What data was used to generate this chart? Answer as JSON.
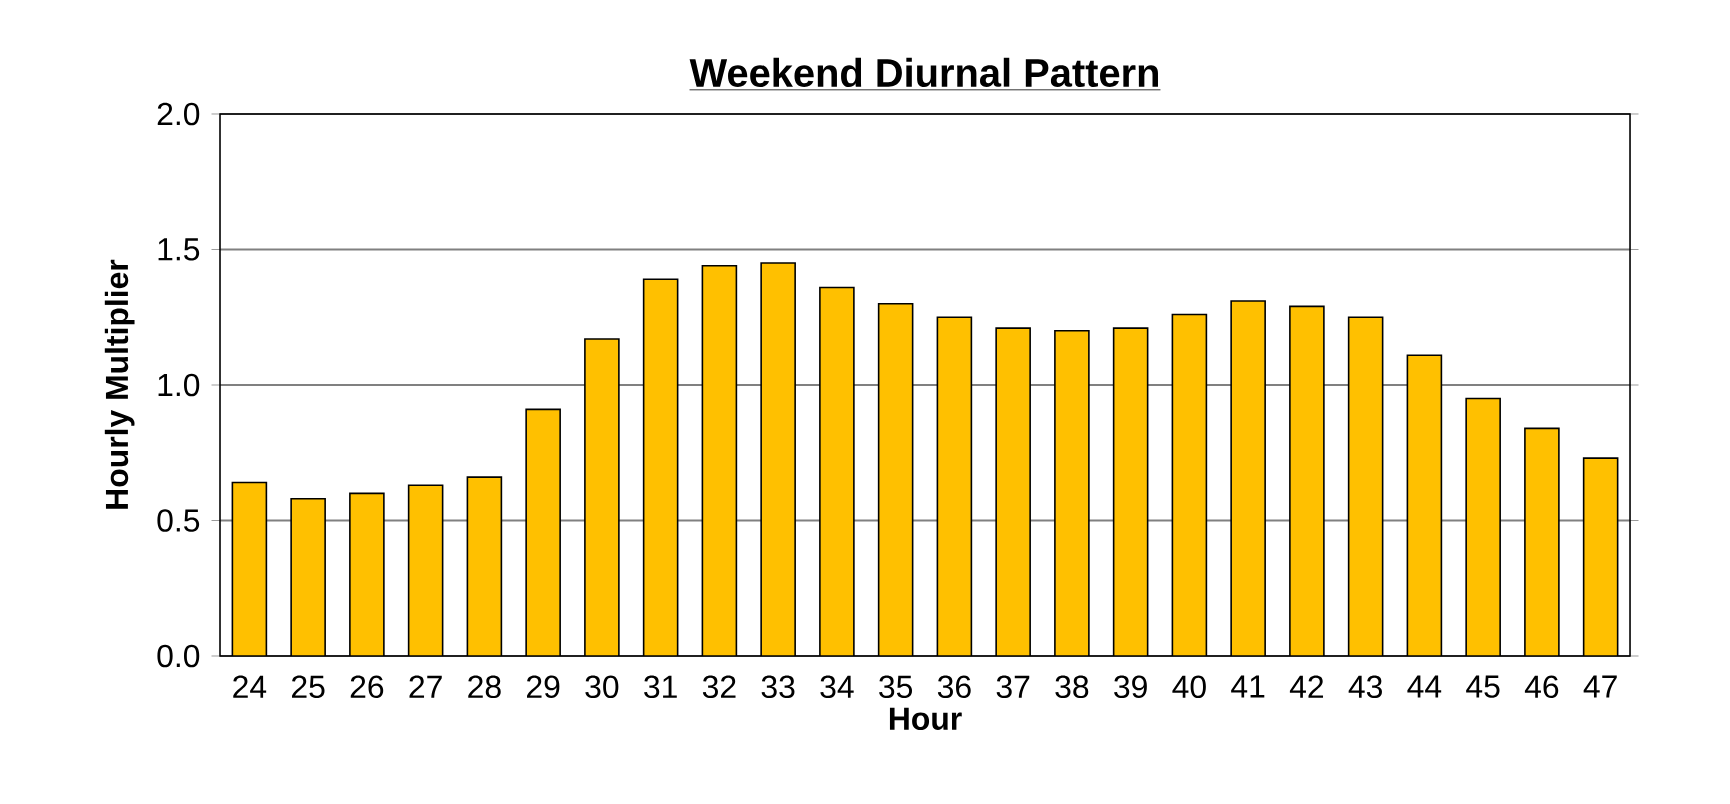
{
  "chart_data": {
    "type": "bar",
    "title": "Weekend Diurnal Pattern",
    "xlabel": "Hour",
    "ylabel": "Hourly Multiplier",
    "categories": [
      "24",
      "25",
      "26",
      "27",
      "28",
      "29",
      "30",
      "31",
      "32",
      "33",
      "34",
      "35",
      "36",
      "37",
      "38",
      "39",
      "40",
      "41",
      "42",
      "43",
      "44",
      "45",
      "46",
      "47"
    ],
    "values": [
      0.64,
      0.58,
      0.6,
      0.63,
      0.66,
      0.91,
      1.17,
      1.39,
      1.44,
      1.45,
      1.36,
      1.3,
      1.25,
      1.21,
      1.2,
      1.21,
      1.26,
      1.31,
      1.29,
      1.25,
      1.11,
      0.95,
      0.84,
      0.73
    ],
    "color": "#ffc000",
    "ylim": [
      0,
      2
    ],
    "yticks": [
      {
        "value": 0,
        "label": "0.0"
      },
      {
        "value": 0.5,
        "label": "0.5"
      },
      {
        "value": 1,
        "label": "1.0"
      },
      {
        "value": 1.5,
        "label": "1.5"
      },
      {
        "value": 2,
        "label": "2.0"
      }
    ],
    "grid": "y"
  }
}
